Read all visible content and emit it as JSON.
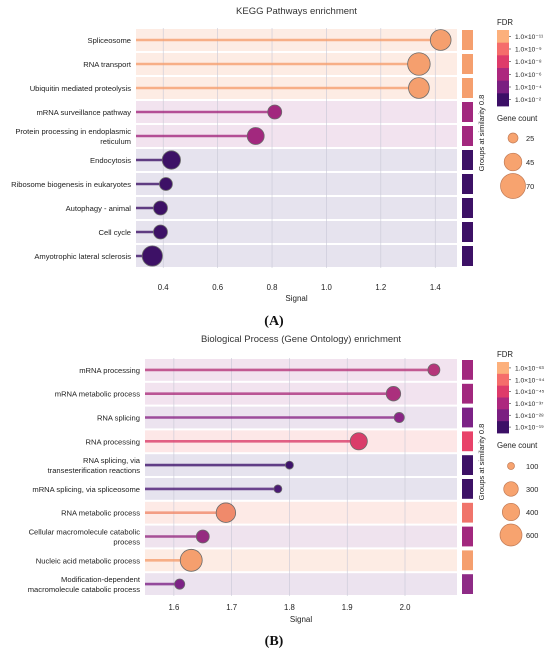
{
  "chart_data": [
    {
      "type": "scatter",
      "variant": "lollipop",
      "panel": "(A)",
      "title": "KEGG Pathways enrichment",
      "xlabel": "Signal",
      "ylabel": "",
      "xlim": [
        0.3,
        1.48
      ],
      "xticks": [
        "0.4",
        "0.6",
        "0.8",
        "1.0",
        "1.2",
        "1.4"
      ],
      "grid": true,
      "colorbar_title": "FDR",
      "colorbar_labels": [
        "1.0×10⁻¹¹",
        "1.0×10⁻⁹",
        "1.0×10⁻⁸",
        "1.0×10⁻⁶",
        "1.0×10⁻⁴",
        "1.0×10⁻²"
      ],
      "size_legend_title": "Gene count",
      "size_legend": [
        25,
        45,
        70
      ],
      "groups_label": "Groups at similarity 0.8",
      "categories": [
        "Spliceosome",
        "RNA transport",
        "Ubiquitin mediated proteolysis",
        "mRNA surveillance pathway",
        "Protein processing in endoplasmic reticulum",
        "Endocytosis",
        "Ribosome biogenesis in eukaryotes",
        "Autophagy - animal",
        "Cell cycle",
        "Amyotrophic lateral sclerosis"
      ],
      "values": [
        1.42,
        1.34,
        1.34,
        0.81,
        0.74,
        0.43,
        0.41,
        0.39,
        0.39,
        0.36
      ],
      "gene_count": [
        50,
        58,
        50,
        25,
        35,
        40,
        22,
        25,
        25,
        48
      ],
      "fdr": [
        "1.0e-11",
        "1.0e-10",
        "1.0e-10",
        "1.0e-6",
        "1.0e-6",
        "1.0e-2",
        "1.0e-2",
        "1.0e-2",
        "1.0e-2",
        "1.0e-2"
      ],
      "colors": [
        "#f59f6e",
        "#f59f6e",
        "#f59f6e",
        "#a2287e",
        "#a2287e",
        "#3d1166",
        "#3d1166",
        "#3d1166",
        "#3d1166",
        "#3d1166"
      ],
      "bands": [
        "#fdece4",
        "#fdece4",
        "#fdece4",
        "#f2e3ef",
        "#f2e3ef",
        "#e6e3ee",
        "#e6e3ee",
        "#e6e3ee",
        "#e6e3ee",
        "#e6e3ee"
      ],
      "group_colors": [
        "#f59f6e",
        "#f59f6e",
        "#f59f6e",
        "#a2287e",
        "#a2287e",
        "#3d1166",
        "#3d1166",
        "#3d1166",
        "#3d1166",
        "#3d1166"
      ]
    },
    {
      "type": "scatter",
      "variant": "lollipop",
      "panel": "(B)",
      "title": "Biological Process (Gene Ontology) enrichment",
      "xlabel": "Signal",
      "ylabel": "",
      "xlim": [
        1.55,
        2.09
      ],
      "xticks": [
        "1.6",
        "1.7",
        "1.8",
        "1.9",
        "2.0"
      ],
      "grid": true,
      "colorbar_title": "FDR",
      "colorbar_labels": [
        "1.0×10⁻⁶³",
        "1.0×10⁻⁵⁴",
        "1.0×10⁻⁴⁵",
        "1.0×10⁻³⁷",
        "1.0×10⁻²⁸",
        "1.0×10⁻¹⁹"
      ],
      "size_legend_title": "Gene count",
      "size_legend": [
        100,
        300,
        400,
        600
      ],
      "groups_label": "Groups at similarity 0.8",
      "categories": [
        "mRNA processing",
        "mRNA metabolic process",
        "RNA splicing",
        "RNA processing",
        "RNA splicing, via transesterification reactions",
        "mRNA splicing, via spliceosome",
        "RNA metabolic process",
        "Cellular macromolecule catabolic process",
        "Nucleic acid metabolic process",
        "Modification-dependent macromolecule catabolic process"
      ],
      "values": [
        2.05,
        1.98,
        1.99,
        1.92,
        1.8,
        1.78,
        1.69,
        1.65,
        1.63,
        1.61
      ],
      "gene_count": [
        200,
        280,
        150,
        380,
        100,
        100,
        480,
        230,
        600,
        150
      ],
      "fdr": [
        "1.0e-40",
        "1.0e-50",
        "1.0e-35",
        "1.0e-58",
        "1.0e-20",
        "1.0e-20",
        "1.0e-60",
        "1.0e-32",
        "1.0e-63",
        "1.0e-30"
      ],
      "colors": [
        "#b5367a",
        "#ab2f7d",
        "#8a2586",
        "#da3d6a",
        "#3e136b",
        "#4b1a74",
        "#f08a6b",
        "#952b80",
        "#f59f6e",
        "#7d2286"
      ],
      "bands": [
        "#f2e3ef",
        "#f2e3ef",
        "#ece3ef",
        "#fde7e7",
        "#e6e3ee",
        "#e6e3ee",
        "#fdeae6",
        "#efe3ee",
        "#fdece4",
        "#ece3ef"
      ],
      "group_colors": [
        "#a2287e",
        "#a2287e",
        "#7c2286",
        "#e8436a",
        "#3d1166",
        "#3d1166",
        "#f0746b",
        "#a2287e",
        "#f59f6e",
        "#8e2b86"
      ]
    }
  ],
  "figure": {
    "caption_a": "(A)",
    "caption_b": "(B)"
  },
  "palette": {
    "fdr_scale": [
      "#fcb07c",
      "#f56d6b",
      "#de3b6a",
      "#ad277e",
      "#7a1f81",
      "#3c0f66"
    ]
  }
}
